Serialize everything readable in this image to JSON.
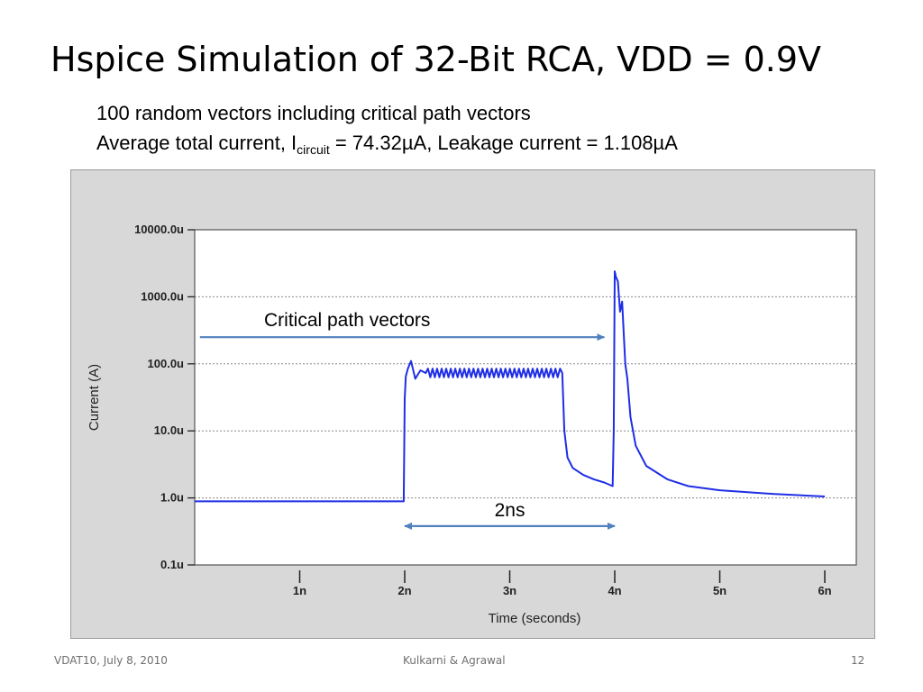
{
  "slide": {
    "title": "Hspice Simulation of 32-Bit RCA, VDD = 0.9V",
    "subtitle_line1": "100 random vectors including critical path vectors",
    "subtitle_line2_prefix": "Average total current, I",
    "subtitle_line2_sub": "circuit",
    "subtitle_line2_suffix": " = 74.32µA, Leakage current = 1.108µA"
  },
  "footer": {
    "left": "VDAT10, July 8, 2010",
    "center": "Kulkarni & Agrawal",
    "right": "12"
  },
  "colors": {
    "trace": "#1f2ee6",
    "annotation_arrow": "#4f81bd",
    "panel_bg": "#d8d8d8",
    "plot_bg": "#ffffff",
    "grid": "#888888"
  },
  "chart_data": {
    "type": "line",
    "title": "",
    "xlabel": "Time (seconds)",
    "ylabel": "Current (A)",
    "x_scale": "linear",
    "y_scale": "log",
    "x_unit_seconds": 1e-09,
    "xlim": [
      0,
      6.3
    ],
    "ylim": [
      1e-07,
      0.01
    ],
    "grid": "horizontal dotted",
    "x_ticks": [
      1,
      2,
      3,
      4,
      5,
      6
    ],
    "x_tick_labels": [
      "1n",
      "2n",
      "3n",
      "4n",
      "5n",
      "6n"
    ],
    "y_ticks": [
      1e-07,
      1e-06,
      1e-05,
      0.0001,
      0.001,
      0.01
    ],
    "y_tick_labels": [
      "0.1u",
      "1.0u",
      "10.0u",
      "100.0u",
      "1000.0u",
      "10000.0u"
    ],
    "annotations": [
      {
        "text": "Critical path vectors",
        "arrow_from_x": 0.05,
        "arrow_to_x": 3.9,
        "arrow_y": 0.00025,
        "direction": "right"
      },
      {
        "text": "2ns",
        "arrow_from_x": 2.0,
        "arrow_to_x": 4.0,
        "arrow_y": 3.8e-07,
        "direction": "both"
      }
    ],
    "series": [
      {
        "x": [
          0.0,
          1.5,
          1.99,
          2.0,
          2.01,
          2.03,
          2.06,
          2.1,
          2.15,
          2.2,
          3.5,
          3.52,
          3.55,
          3.6,
          3.7,
          3.8,
          3.9,
          3.98,
          3.99,
          4.0,
          4.01,
          4.03,
          4.05,
          4.07,
          4.1,
          4.12,
          4.15,
          4.2,
          4.3,
          4.5,
          4.7,
          5.0,
          5.5,
          6.0
        ],
        "y": [
          8.9e-07,
          8.9e-07,
          8.9e-07,
          3e-05,
          6.5e-05,
          8.5e-05,
          0.00011,
          6e-05,
          8e-05,
          7.3e-05,
          7.3e-05,
          1e-05,
          4e-06,
          2.8e-06,
          2.2e-06,
          1.9e-06,
          1.7e-06,
          1.5e-06,
          1e-05,
          0.0024,
          0.002,
          0.0017,
          0.0006,
          0.00085,
          0.0001,
          6e-05,
          1.6e-05,
          6e-06,
          3e-06,
          1.9e-06,
          1.5e-06,
          1.3e-06,
          1.15e-06,
          1.05e-06
        ],
        "oscillation": {
          "x_start": 2.2,
          "x_end": 3.5,
          "peak": 8.5e-05,
          "trough": 6.3e-05,
          "cycles": 30
        }
      }
    ]
  }
}
